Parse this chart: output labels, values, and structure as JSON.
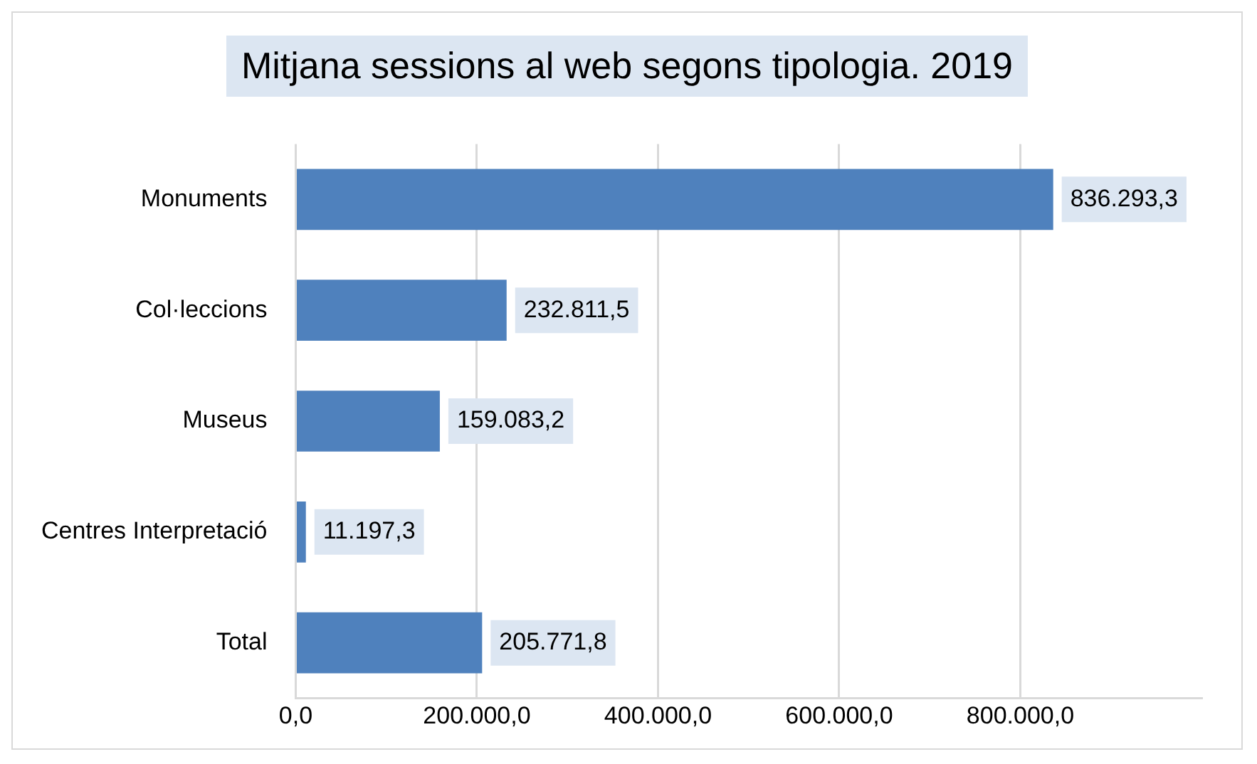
{
  "chart_data": {
    "type": "bar",
    "title": "Mitjana sessions al web segons tipologia. 2019",
    "orientation": "horizontal",
    "categories": [
      "Monuments",
      "Col·leccions",
      "Museus",
      "Centres Interpretació",
      "Total"
    ],
    "values": [
      836293.3,
      232811.5,
      159083.2,
      11197.3,
      205771.8
    ],
    "value_labels": [
      "836.293,3",
      "232.811,5",
      "159.083,2",
      "11.197,3",
      "205.771,8"
    ],
    "color": "#4f81bd",
    "xlim": [
      0,
      1000000
    ],
    "xticks": [
      {
        "value": 0,
        "label": "0,0"
      },
      {
        "value": 200000,
        "label": "200.000,0"
      },
      {
        "value": 400000,
        "label": "400.000,0"
      },
      {
        "value": 600000,
        "label": "600.000,0"
      },
      {
        "value": 800000,
        "label": "800.000,0"
      }
    ],
    "grid": "x",
    "legend": false
  }
}
